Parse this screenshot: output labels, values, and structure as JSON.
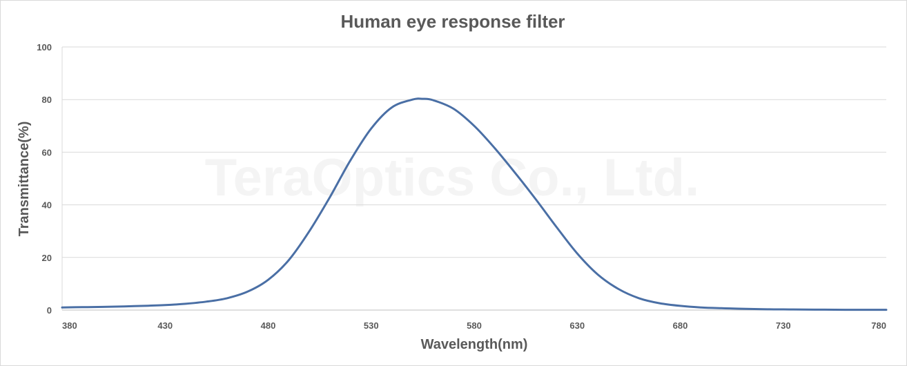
{
  "chart_data": {
    "type": "line",
    "title": "Human eye response filter",
    "xlabel": "Wavelength(nm)",
    "ylabel": "Transmittance(%)",
    "watermark": "TeraOptics Co., Ltd.",
    "xlim": [
      380,
      780
    ],
    "ylim": [
      0,
      100
    ],
    "xticks": [
      380,
      430,
      480,
      530,
      580,
      630,
      680,
      730,
      780
    ],
    "yticks": [
      0,
      20,
      40,
      60,
      80,
      100
    ],
    "grid": true,
    "legend": "none",
    "line_color": "#4a6fa5",
    "series": [
      {
        "x": [
          380,
          390,
          400,
          410,
          420,
          430,
          440,
          450,
          460,
          470,
          480,
          490,
          500,
          510,
          520,
          530,
          540,
          550,
          555,
          560,
          570,
          580,
          590,
          600,
          610,
          620,
          630,
          640,
          650,
          660,
          670,
          680,
          690,
          700,
          710,
          720,
          730,
          740,
          750,
          760,
          770,
          780
        ],
        "values": [
          1.0,
          1.1,
          1.2,
          1.4,
          1.6,
          1.9,
          2.4,
          3.2,
          4.5,
          7.0,
          11.5,
          19.0,
          30.0,
          43.0,
          57.0,
          69.0,
          77.0,
          80.0,
          80.3,
          79.8,
          76.5,
          70.0,
          61.5,
          52.0,
          42.0,
          31.5,
          21.5,
          13.5,
          8.0,
          4.5,
          2.6,
          1.6,
          1.0,
          0.7,
          0.5,
          0.35,
          0.25,
          0.2,
          0.15,
          0.1,
          0.1,
          0.1
        ]
      }
    ]
  }
}
